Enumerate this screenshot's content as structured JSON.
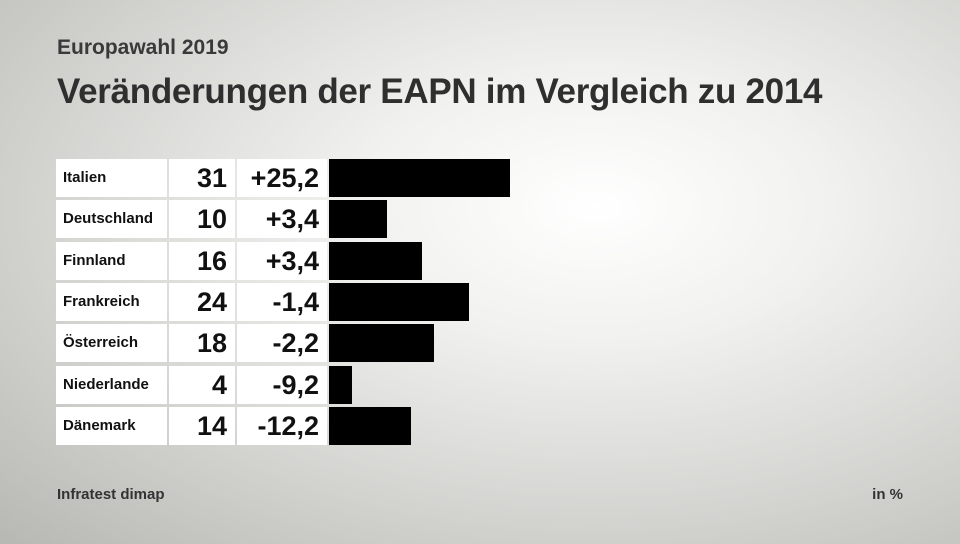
{
  "header": {
    "subtitle": "Europawahl 2019",
    "title": "Veränderungen der EAPN im Vergleich zu 2014"
  },
  "footer": {
    "source": "Infratest dimap",
    "unit": "in %"
  },
  "colors": {
    "bar": "#000000",
    "cell_background": "#ffffff"
  },
  "chart_data": {
    "type": "bar",
    "orientation": "horizontal",
    "categories": [
      "Italien",
      "Deutschland",
      "Finnland",
      "Frankreich",
      "Österreich",
      "Niederlande",
      "Dänemark"
    ],
    "values": [
      31,
      10,
      16,
      24,
      18,
      4,
      14
    ],
    "value_labels": [
      "31",
      "10",
      "16",
      "24",
      "18",
      "4",
      "14"
    ],
    "change_labels": [
      "+25,2",
      "+3,4",
      "+3,4",
      "-1,4",
      "-2,2",
      "-9,2",
      "-12,2"
    ],
    "xlim": [
      0,
      31
    ],
    "grid": false
  }
}
